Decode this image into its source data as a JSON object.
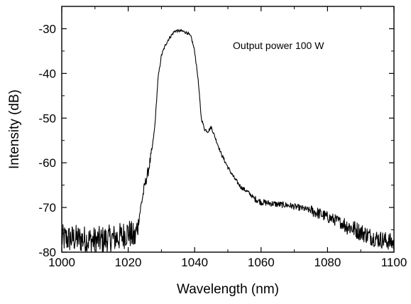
{
  "chart_data": {
    "type": "line",
    "title": "",
    "xlabel": "Wavelength (nm)",
    "ylabel": "Intensity (dB)",
    "xlim": [
      1000,
      1100
    ],
    "ylim": [
      -80,
      -25
    ],
    "x_ticks": [
      1000,
      1020,
      1040,
      1060,
      1080,
      1100
    ],
    "x_tick_labels": [
      "1000",
      "1020",
      "1040",
      "1060",
      "1080",
      "1100"
    ],
    "y_ticks": [
      -80,
      -70,
      -60,
      -50,
      -40,
      -30
    ],
    "y_tick_labels": [
      "-80",
      "-70",
      "-60",
      "-50",
      "-40",
      "-30"
    ],
    "grid": false,
    "legend": "none",
    "annotations": [
      {
        "text": "Output power 100 W",
        "x": 1051.5,
        "y": -34.5
      }
    ],
    "series": [
      {
        "color": "#000000",
        "x": [
          1000,
          1005,
          1010,
          1015,
          1018,
          1020,
          1022,
          1023,
          1024,
          1025,
          1026,
          1027,
          1028,
          1029,
          1030,
          1031,
          1032,
          1033,
          1034,
          1035,
          1036,
          1037,
          1038,
          1039,
          1040,
          1041,
          1042,
          1043,
          1044,
          1045,
          1046,
          1047,
          1048,
          1050,
          1052,
          1054,
          1056,
          1058,
          1060,
          1062,
          1065,
          1068,
          1070,
          1073,
          1075,
          1078,
          1080,
          1083,
          1085,
          1088,
          1090,
          1093,
          1095,
          1098,
          1100
        ],
        "y": [
          -77,
          -77,
          -77.5,
          -77,
          -76.5,
          -75.5,
          -77,
          -73.5,
          -69,
          -65,
          -62,
          -58,
          -52,
          -41,
          -36,
          -34,
          -32.5,
          -31.5,
          -30.5,
          -30.5,
          -30.5,
          -30.7,
          -31,
          -32,
          -35,
          -41,
          -50,
          -52.5,
          -53,
          -52,
          -54,
          -56,
          -58,
          -61,
          -63.5,
          -65.5,
          -66.5,
          -68,
          -68.8,
          -69,
          -69.3,
          -69.5,
          -69.8,
          -70.3,
          -70.7,
          -71.5,
          -72.2,
          -73,
          -73.8,
          -74.8,
          -75.5,
          -76.5,
          -77,
          -77.5,
          -78
        ]
      }
    ]
  }
}
